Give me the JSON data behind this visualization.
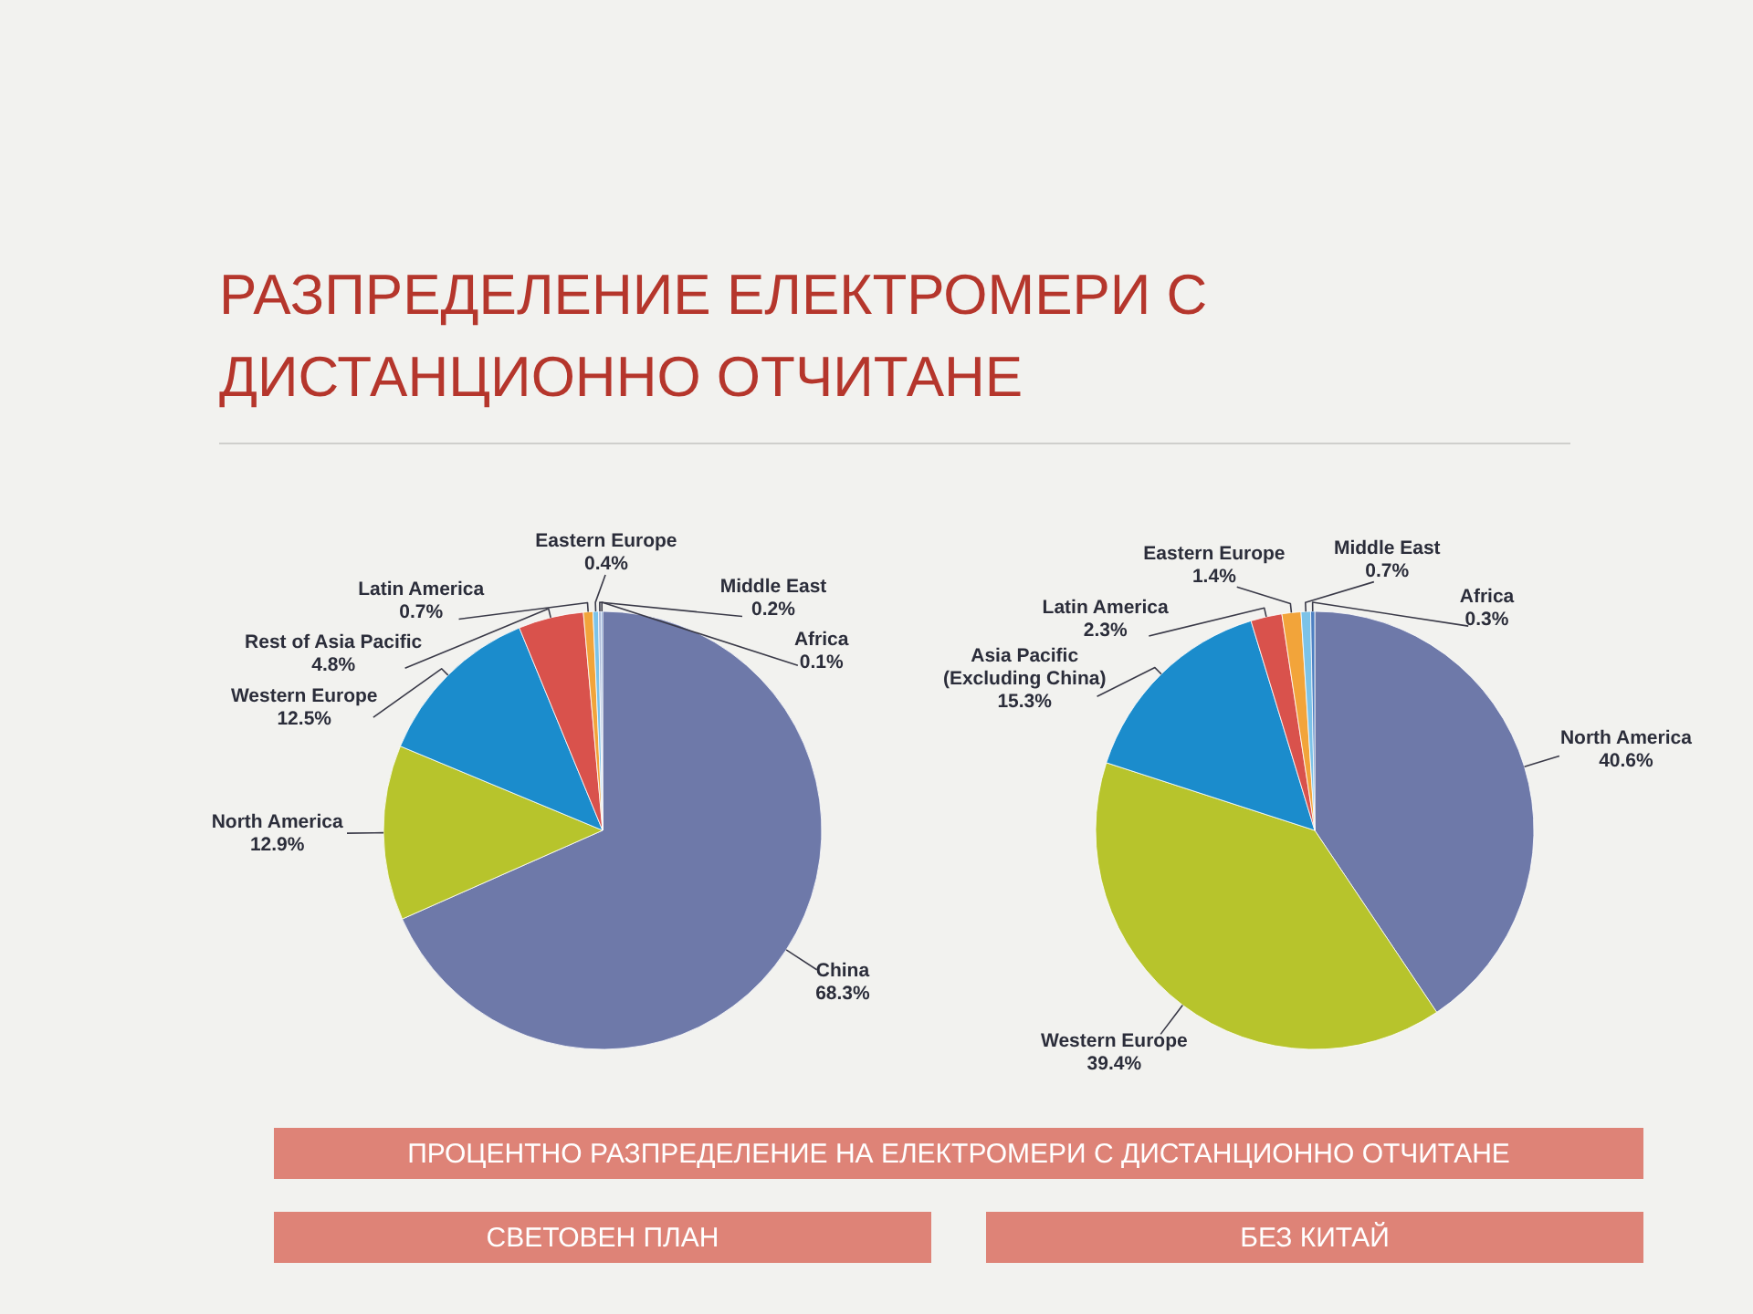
{
  "chart_data": [
    {
      "type": "pie",
      "title": "РАЗПРЕДЕЛЕНИЕ ЕЛЕКТРОМЕРИ С ДИСТАНЦИОННО ОТЧИТАНЕ",
      "categories": [
        "China",
        "North America",
        "Western Europe",
        "Rest of Asia Pacific",
        "Latin America",
        "Eastern Europe",
        "Middle East",
        "Africa"
      ],
      "values": [
        68.3,
        12.9,
        12.5,
        4.8,
        0.7,
        0.4,
        0.2,
        0.1
      ],
      "value_labels": [
        "68.3%",
        "12.9%",
        "12.5%",
        "4.8%",
        "0.7%",
        "0.4%",
        "0.2%",
        "0.1%"
      ],
      "colors": [
        "#6e79a9",
        "#b7c42c",
        "#1b8ccc",
        "#d9524c",
        "#f2a43a",
        "#7cc3e8",
        "#a9b8d8",
        "#4d7fc2"
      ],
      "annotations": [
        "ПРОЦЕНТНО РАЗПРЕДЕЛЕНИЕ НА ЕЛЕКТРОМЕРИ С ДИСТАНЦИОННО ОТЧИТАНЕ",
        "СВЕТОВЕН ПЛАН"
      ]
    },
    {
      "type": "pie",
      "categories": [
        "North America",
        "Western Europe",
        "Asia Pacific (Excluding China)",
        "Latin America",
        "Eastern Europe",
        "Middle East",
        "Africa"
      ],
      "values": [
        40.6,
        39.4,
        15.3,
        2.3,
        1.4,
        0.7,
        0.3
      ],
      "value_labels": [
        "40.6%",
        "39.4%",
        "15.3%",
        "2.3%",
        "1.4%",
        "0.7%",
        "0.3%"
      ],
      "colors": [
        "#6e79a9",
        "#b7c42c",
        "#1b8ccc",
        "#d9524c",
        "#f2a43a",
        "#7cc3e8",
        "#4d7fc2"
      ],
      "annotations": [
        "БЕЗ КИТАЙ"
      ]
    }
  ]
}
